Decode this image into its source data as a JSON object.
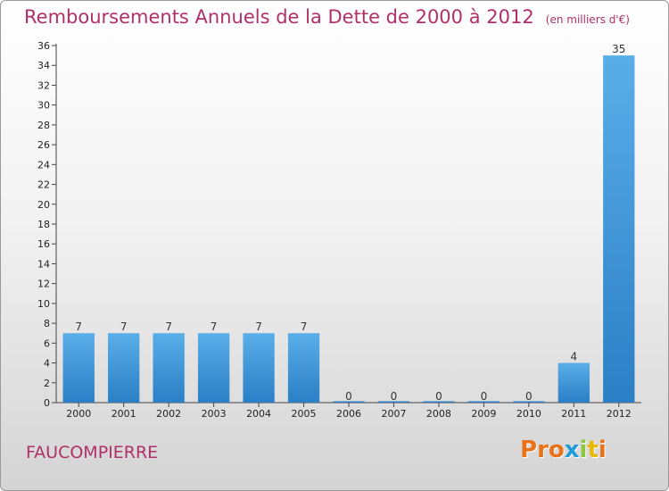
{
  "title": "Remboursements Annuels de la Dette de 2000 à 2012",
  "unit_note": "(en milliers d'€)",
  "commune": "FAUCOMPIERRE",
  "logo": {
    "letters": [
      "P",
      "r",
      "o",
      "x",
      "i",
      "t",
      "i"
    ],
    "colors": [
      "#e8731a",
      "#e8731a",
      "#e8731a",
      "#1f9bd8",
      "#8cc63f",
      "#e6b800",
      "#e8731a"
    ]
  },
  "colors": {
    "bar_light": "#5aaee8",
    "bar_dark": "#2a7fc6",
    "title": "#b0306a"
  },
  "chart_data": {
    "type": "bar",
    "title": "Remboursements Annuels de la Dette de 2000 à 2012",
    "xlabel": "",
    "ylabel": "",
    "categories": [
      "2000",
      "2001",
      "2002",
      "2003",
      "2004",
      "2005",
      "2006",
      "2007",
      "2008",
      "2009",
      "2010",
      "2011",
      "2012"
    ],
    "values": [
      7,
      7,
      7,
      7,
      7,
      7,
      0,
      0,
      0,
      0,
      0,
      4,
      35
    ],
    "ylim": [
      0,
      36
    ],
    "yticks": [
      0,
      2,
      4,
      6,
      8,
      10,
      12,
      14,
      16,
      18,
      20,
      22,
      24,
      26,
      28,
      30,
      32,
      34,
      36
    ],
    "grid": false,
    "data_labels": true
  }
}
